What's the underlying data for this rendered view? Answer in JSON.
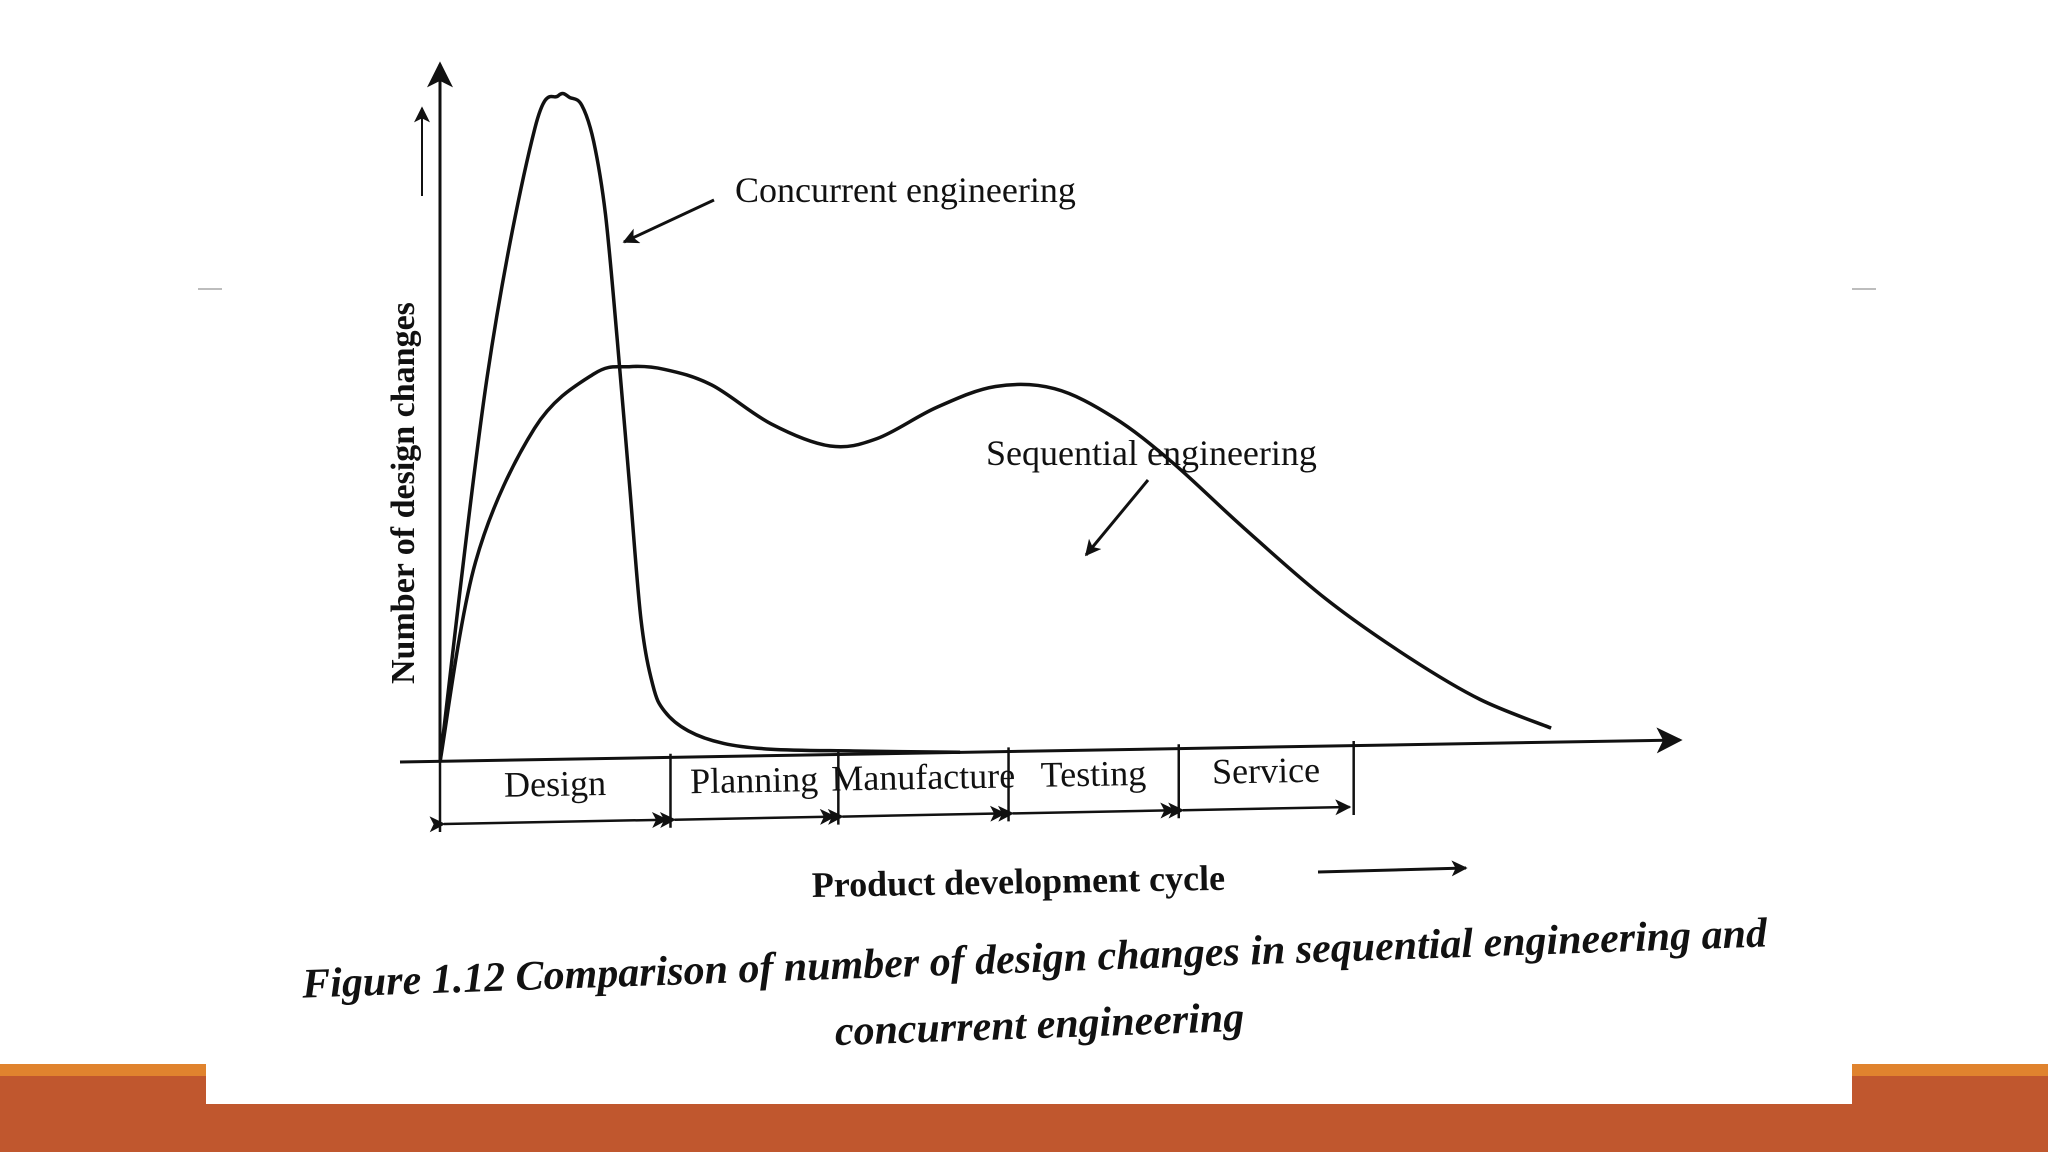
{
  "theme": {
    "accent_color": "#c0572e",
    "accent_light": "#e0832e",
    "ink_color": "#111111"
  },
  "chart_data": {
    "type": "line",
    "xlabel": "Product development cycle",
    "ylabel": "Number of design changes",
    "caption_line1": "Figure 1.12 Comparison of number of design changes in sequential engineering and",
    "caption_line2": "concurrent engineering",
    "x_phases": [
      "Design",
      "Planning",
      "Manufacture",
      "Testing",
      "Service"
    ],
    "xlim": [
      0,
      100
    ],
    "ylim": [
      0,
      100
    ],
    "series": [
      {
        "name": "Concurrent engineering",
        "x": [
          0,
          4,
          8,
          10,
          11,
          12,
          13,
          14,
          15,
          16,
          17,
          18,
          19,
          21,
          24,
          28,
          35,
          44
        ],
        "y": [
          0,
          58,
          95,
          100,
          99.7,
          98.5,
          93,
          82,
          63,
          42,
          21,
          11,
          7,
          4,
          2,
          1,
          0.5,
          0
        ]
      },
      {
        "name": "Sequential engineering",
        "x": [
          0,
          3,
          8,
          13,
          16,
          19,
          23,
          28,
          33,
          37,
          42,
          47,
          52,
          57,
          62,
          68,
          75,
          82,
          88,
          94
        ],
        "y": [
          0,
          30,
          50,
          58,
          59,
          58.5,
          56,
          50,
          46.5,
          47.5,
          52,
          55,
          54.5,
          50,
          43,
          33,
          22,
          13,
          6.5,
          2
        ]
      }
    ],
    "grid": false
  }
}
